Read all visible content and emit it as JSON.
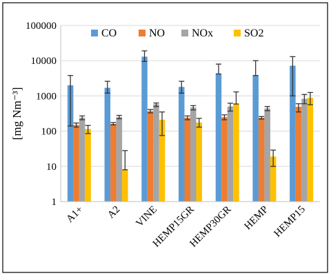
{
  "chart_data": {
    "type": "bar",
    "y_scale": "log",
    "ylim": [
      1,
      100000
    ],
    "y_ticks": [
      "1",
      "10",
      "100",
      "1000",
      "10000",
      "100000"
    ],
    "ylabel": "[mg Nm⁻³]",
    "xlabel": "",
    "grid": "horizontal",
    "legend_position": "top",
    "categories": [
      "A1+",
      "A2",
      "VINE",
      "HEMP15GR",
      "HEMP30GR",
      "HEMP",
      "HEMP15"
    ],
    "series": [
      {
        "name": "CO",
        "color": "#5b9bd5",
        "values": [
          2000,
          1700,
          13000,
          1800,
          4200,
          3800,
          7200
        ],
        "err_low": [
          140,
          1200,
          9500,
          1200,
          4200,
          3800,
          1000
        ],
        "err_high": [
          3800,
          2600,
          19000,
          2600,
          8000,
          10000,
          13000
        ]
      },
      {
        "name": "NO",
        "color": "#ed7d31",
        "values": [
          150,
          160,
          370,
          240,
          250,
          240,
          490
        ],
        "err_low": [
          130,
          150,
          330,
          210,
          210,
          220,
          350
        ],
        "err_high": [
          170,
          175,
          410,
          270,
          290,
          260,
          600
        ]
      },
      {
        "name": "NOx",
        "color": "#a5a5a5",
        "values": [
          240,
          250,
          580,
          470,
          500,
          440,
          830
        ],
        "err_low": [
          210,
          225,
          500,
          400,
          370,
          380,
          600
        ],
        "err_high": [
          270,
          280,
          630,
          530,
          620,
          500,
          1100
        ]
      },
      {
        "name": "SO2",
        "color": "#ffc000",
        "values": [
          115,
          8,
          210,
          175,
          590,
          19,
          880
        ],
        "err_low": [
          85,
          8,
          75,
          130,
          590,
          10,
          560
        ],
        "err_high": [
          145,
          28,
          350,
          230,
          1300,
          29,
          1250
        ]
      }
    ]
  }
}
